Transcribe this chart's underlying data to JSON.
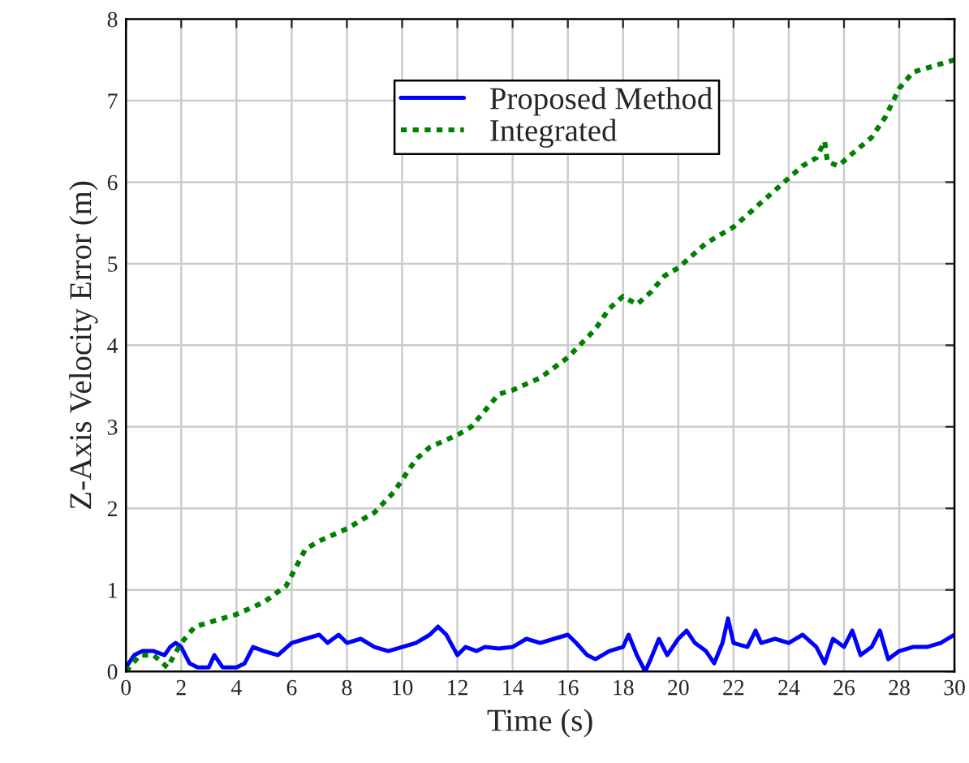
{
  "chart_data": {
    "type": "line",
    "xlabel": "Time (s)",
    "ylabel": "Z-Axis Velocity Error (m)",
    "xlim": [
      0,
      30
    ],
    "ylim": [
      0,
      8
    ],
    "xticks": [
      0,
      2,
      4,
      6,
      8,
      10,
      12,
      14,
      16,
      18,
      20,
      22,
      24,
      26,
      28,
      30
    ],
    "yticks": [
      0,
      1,
      2,
      3,
      4,
      5,
      6,
      7,
      8
    ],
    "grid": true,
    "legend": "top",
    "marker": "none",
    "series": [
      {
        "name": "Proposed Method",
        "color": "#0000ff",
        "line_style": "solid",
        "x": [
          0,
          0.3,
          0.6,
          1,
          1.4,
          1.6,
          1.8,
          2,
          2.3,
          2.6,
          3,
          3.2,
          3.5,
          4,
          4.3,
          4.6,
          5,
          5.5,
          6,
          6.5,
          7,
          7.3,
          7.7,
          8,
          8.5,
          9,
          9.5,
          10,
          10.5,
          11,
          11.3,
          11.6,
          12,
          12.3,
          12.7,
          13,
          13.5,
          14,
          14.5,
          15,
          15.5,
          16,
          16.3,
          16.7,
          17,
          17.5,
          18,
          18.2,
          18.5,
          18.8,
          19,
          19.3,
          19.6,
          20,
          20.3,
          20.6,
          21,
          21.3,
          21.6,
          21.8,
          22,
          22.5,
          22.8,
          23,
          23.5,
          24,
          24.5,
          25,
          25.3,
          25.6,
          26,
          26.3,
          26.6,
          27,
          27.3,
          27.6,
          28,
          28.5,
          29,
          29.5,
          30
        ],
        "values": [
          0.05,
          0.2,
          0.25,
          0.25,
          0.2,
          0.3,
          0.35,
          0.3,
          0.1,
          0.05,
          0.05,
          0.2,
          0.05,
          0.05,
          0.1,
          0.3,
          0.25,
          0.2,
          0.35,
          0.4,
          0.45,
          0.35,
          0.45,
          0.35,
          0.4,
          0.3,
          0.25,
          0.3,
          0.35,
          0.45,
          0.55,
          0.45,
          0.2,
          0.3,
          0.25,
          0.3,
          0.28,
          0.3,
          0.4,
          0.35,
          0.4,
          0.45,
          0.35,
          0.2,
          0.15,
          0.25,
          0.3,
          0.45,
          0.2,
          0.0,
          0.15,
          0.4,
          0.2,
          0.4,
          0.5,
          0.35,
          0.25,
          0.1,
          0.35,
          0.65,
          0.35,
          0.3,
          0.5,
          0.35,
          0.4,
          0.35,
          0.45,
          0.3,
          0.1,
          0.4,
          0.3,
          0.5,
          0.2,
          0.3,
          0.5,
          0.15,
          0.25,
          0.3,
          0.3,
          0.35,
          0.45
        ]
      },
      {
        "name": "Integrated",
        "color": "#008000",
        "line_style": "dotted",
        "x": [
          0,
          0.5,
          1,
          1.5,
          2,
          2.5,
          3,
          4,
          5,
          5.8,
          6.5,
          7,
          8,
          9,
          9.7,
          10.5,
          11,
          12,
          12.5,
          13,
          13.5,
          14,
          15,
          16,
          17,
          17.5,
          18,
          18.5,
          19,
          19.5,
          20,
          21,
          22,
          23,
          24,
          24.5,
          25,
          25.3,
          25.4,
          25.8,
          26.3,
          27,
          27.5,
          28,
          28.5,
          29,
          29.5,
          30
        ],
        "values": [
          0,
          0.2,
          0.2,
          0.05,
          0.35,
          0.55,
          0.6,
          0.7,
          0.85,
          1.05,
          1.5,
          1.6,
          1.75,
          1.95,
          2.2,
          2.6,
          2.75,
          2.9,
          3.0,
          3.2,
          3.4,
          3.45,
          3.6,
          3.85,
          4.2,
          4.45,
          4.6,
          4.5,
          4.65,
          4.85,
          4.95,
          5.25,
          5.45,
          5.75,
          6.05,
          6.2,
          6.3,
          6.5,
          6.25,
          6.2,
          6.35,
          6.55,
          6.8,
          7.15,
          7.35,
          7.4,
          7.45,
          7.5
        ]
      }
    ]
  }
}
